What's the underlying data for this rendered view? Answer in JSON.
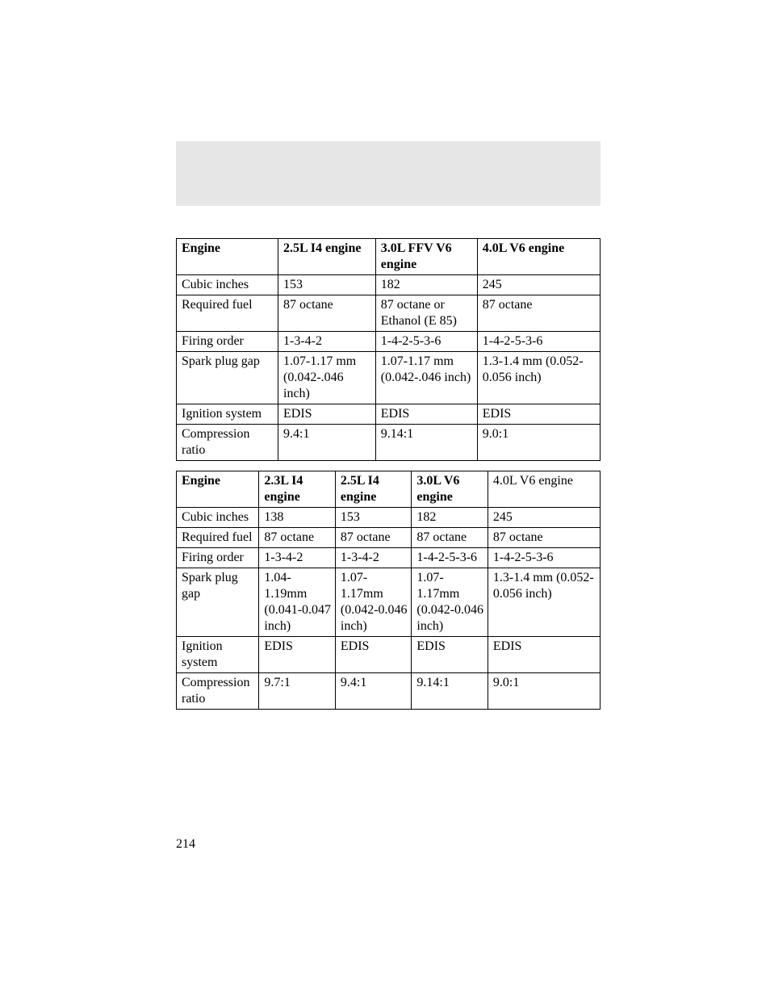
{
  "table1": {
    "header": [
      "Engine",
      "2.5L I4 engine",
      "3.0L FFV V6 engine",
      "4.0L V6 engine"
    ],
    "rows": [
      [
        "Cubic inches",
        "153",
        "182",
        "245"
      ],
      [
        "Required fuel",
        "87 octane",
        "87 octane or Ethanol (E 85)",
        "87 octane"
      ],
      [
        "Firing order",
        "1-3-4-2",
        "1-4-2-5-3-6",
        "1-4-2-5-3-6"
      ],
      [
        "Spark plug gap",
        "1.07-1.17 mm (0.042-.046 inch)",
        "1.07-1.17 mm (0.042-.046 inch)",
        "1.3-1.4 mm (0.052-0.056 inch)"
      ],
      [
        "Ignition system",
        "EDIS",
        "EDIS",
        "EDIS"
      ],
      [
        "Compression ratio",
        "9.4:1",
        "9.14:1",
        "9.0:1"
      ]
    ]
  },
  "table2": {
    "header": [
      "Engine",
      "2.3L I4 engine",
      "2.5L I4 engine",
      "3.0L V6 engine",
      "4.0L V6 engine"
    ],
    "header_bold": [
      true,
      true,
      true,
      true,
      false
    ],
    "rows": [
      [
        "Cubic inches",
        "138",
        "153",
        "182",
        "245"
      ],
      [
        "Required fuel",
        "87 octane",
        "87 octane",
        "87 octane",
        "87 octane"
      ],
      [
        "Firing order",
        "1-3-4-2",
        "1-3-4-2",
        "1-4-2-5-3-6",
        "1-4-2-5-3-6"
      ],
      [
        "Spark plug gap",
        "1.04-1.19mm (0.041-0.047 inch)",
        "1.07-1.17mm (0.042-0.046 inch)",
        "1.07-1.17mm (0.042-0.046 inch)",
        "1.3-1.4 mm (0.052-0.056 inch)"
      ],
      [
        "Ignition system",
        "EDIS",
        "EDIS",
        "EDIS",
        "EDIS"
      ],
      [
        "Compression ratio",
        "9.7:1",
        "9.4:1",
        "9.14:1",
        "9.0:1"
      ]
    ]
  },
  "page_number": "214"
}
